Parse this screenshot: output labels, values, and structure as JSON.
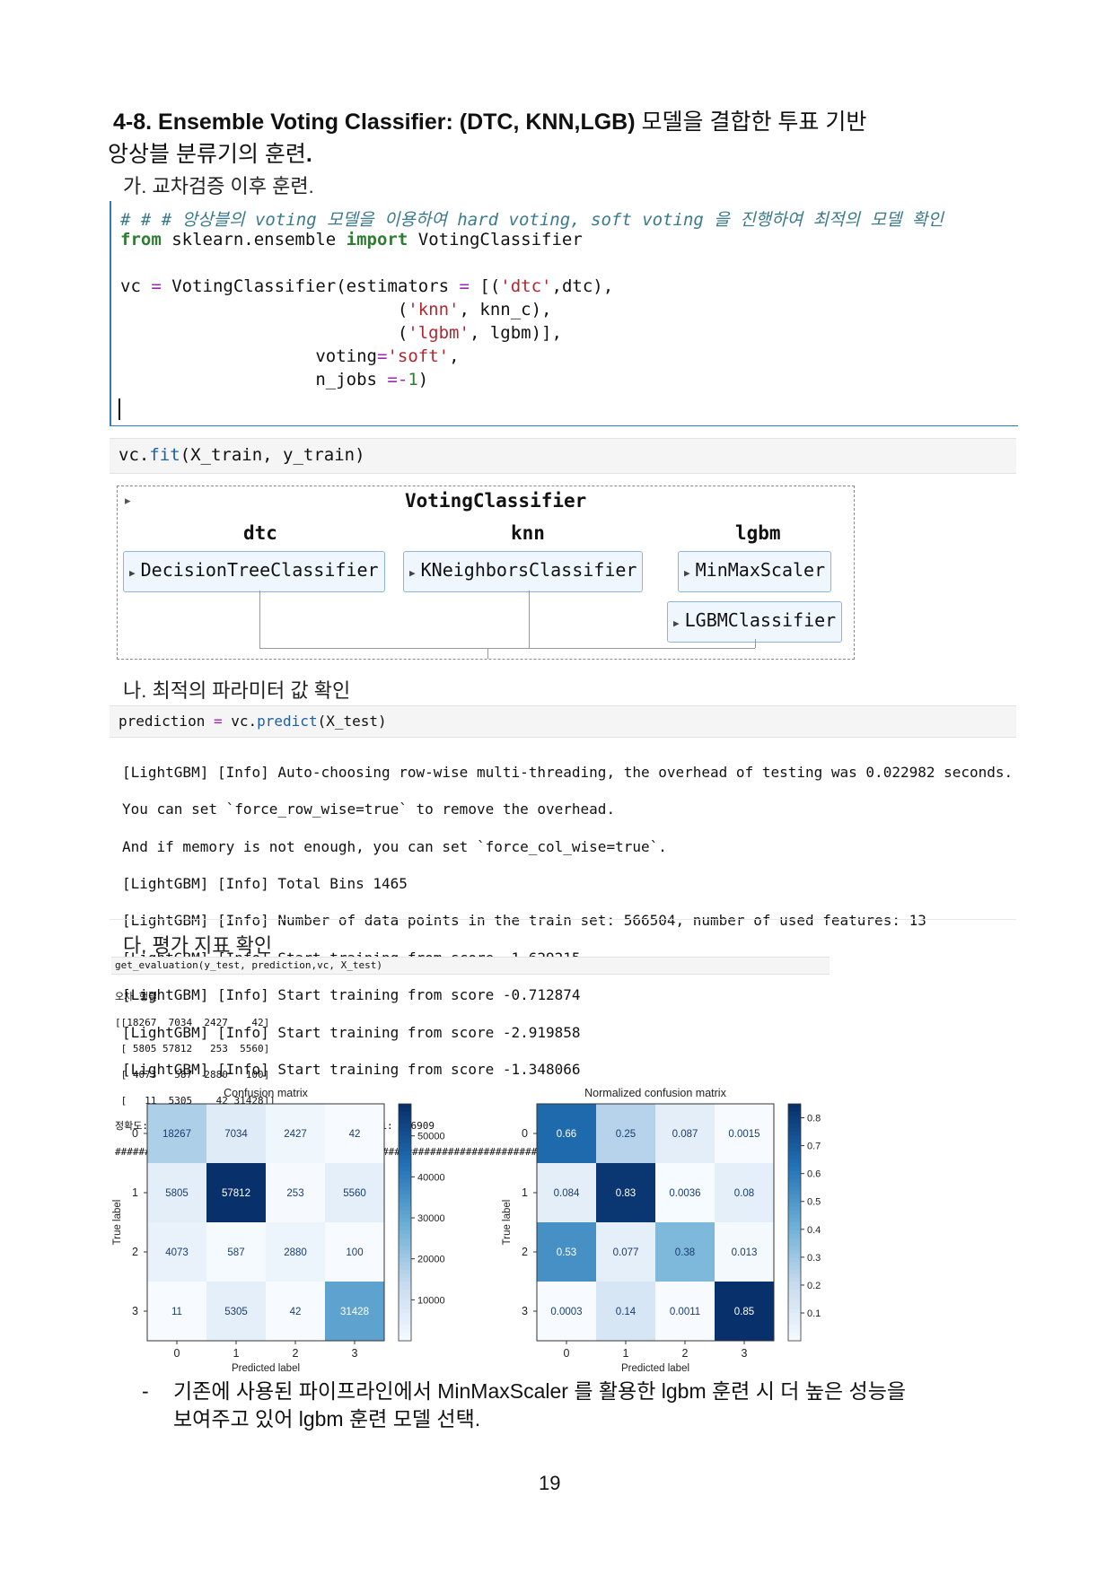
{
  "heading": {
    "bold": "4-8. Ensemble Voting Classifier: (DTC, KNN,LGB)",
    "rest": " 모델을 결합한 투표 기반",
    "line2a": "앙상블 분류기의 훈련",
    "line2b": "."
  },
  "section_ga": "가. 교차검증 이후 훈련.",
  "code_cell": {
    "comment": "# # # 앙상블의 voting 모델을 이용하여 hard voting, soft voting 을 진행하여 최적의 모델 확인",
    "import_from": "from",
    "import_module": " sklearn.ensemble ",
    "import_kw": "import",
    "import_name": " VotingClassifier",
    "l3_a": "vc ",
    "l3_op": "=",
    "l3_b": " VotingClassifier(estimators ",
    "l3_op2": "=",
    "l3_c": " [(",
    "l3_str": "'dtc'",
    "l3_d": ",dtc),",
    "l4_a": "                           (",
    "l4_str": "'knn'",
    "l4_b": ", knn_c),",
    "l5_a": "                           (",
    "l5_str": "'lgbm'",
    "l5_b": ", lgbm)],",
    "l6_a": "                   voting",
    "l6_op": "=",
    "l6_str": "'soft'",
    "l6_b": ",",
    "l7_a": "                   n_jobs ",
    "l7_op": "=-",
    "l7_num": "1",
    "l7_b": ")"
  },
  "fit_cell": {
    "a": "vc.",
    "fn": "fit",
    "b": "(X_train, y_train)"
  },
  "voting_diagram": {
    "title": "VotingClassifier",
    "expand_icon": "▸",
    "columns": [
      {
        "label": "dtc",
        "estimators": [
          "DecisionTreeClassifier"
        ]
      },
      {
        "label": "knn",
        "estimators": [
          "KNeighborsClassifier"
        ]
      },
      {
        "label": "lgbm",
        "estimators": [
          "MinMaxScaler",
          "LGBMClassifier"
        ]
      }
    ]
  },
  "section_na": "나. 최적의 파라미터 값 확인",
  "predict_cell": {
    "a": "prediction ",
    "op": "=",
    "b": " vc.",
    "fn": "predict",
    "c": "(X_test)"
  },
  "lgbm_output": [
    "[LightGBM] [Info] Auto-choosing row-wise multi-threading, the overhead of testing was 0.022982 seconds.",
    "You can set `force_row_wise=true` to remove the overhead.",
    "And if memory is not enough, you can set `force_col_wise=true`.",
    "[LightGBM] [Info] Total Bins 1465",
    "[LightGBM] [Info] Number of data points in the train set: 566504, number of used features: 13",
    "[LightGBM] [Info] Start training from score -1.629215",
    "[LightGBM] [Info] Start training from score -0.712874",
    "[LightGBM] [Info] Start training from score -2.919858",
    "[LightGBM] [Info] Start training from score -1.348066"
  ],
  "section_da": "다. 평가 지표 확인",
  "eval_cell": "get_evaluation(y_test, prediction,vc, X_test)",
  "eval_output": [
    "오차 행렬",
    "[[18267  7034  2427    42]",
    " [ 5805 57812   253  5560]",
    " [ 4073   587  2880   100]",
    " [   11  5305    42 31428]]",
    "정확도: 0.7794, 정밀도: 0.7066, 재현율: 0.6804, F1: 0.6909",
    "############################################################################"
  ],
  "chart_data": [
    {
      "type": "heatmap",
      "title": "Confusion matrix",
      "xlabel": "Predicted label",
      "ylabel": "True label",
      "x_ticks": [
        "0",
        "1",
        "2",
        "3"
      ],
      "y_ticks": [
        "0",
        "1",
        "2",
        "3"
      ],
      "values": [
        [
          18267,
          7034,
          2427,
          42
        ],
        [
          5805,
          57812,
          253,
          5560
        ],
        [
          4073,
          587,
          2880,
          100
        ],
        [
          11,
          5305,
          42,
          31428
        ]
      ],
      "labels": [
        [
          "18267",
          "7034",
          "2427",
          "42"
        ],
        [
          "5805",
          "57812",
          "253",
          "5560"
        ],
        [
          "4073",
          "587",
          "2880",
          "100"
        ],
        [
          "11",
          "5305",
          "42",
          "31428"
        ]
      ],
      "colormap": "Blues",
      "vmin": 11,
      "vmax": 57812,
      "colorbar_ticks": [
        10000,
        20000,
        30000,
        40000,
        50000
      ],
      "colorbar_labels": [
        "10000",
        "20000",
        "30000",
        "40000",
        "50000"
      ]
    },
    {
      "type": "heatmap",
      "title": "Normalized confusion matrix",
      "xlabel": "Predicted label",
      "ylabel": "True label",
      "x_ticks": [
        "0",
        "1",
        "2",
        "3"
      ],
      "y_ticks": [
        "0",
        "1",
        "2",
        "3"
      ],
      "values": [
        [
          0.66,
          0.25,
          0.087,
          0.0015
        ],
        [
          0.084,
          0.83,
          0.0036,
          0.08
        ],
        [
          0.53,
          0.077,
          0.38,
          0.013
        ],
        [
          0.0003,
          0.14,
          0.0011,
          0.85
        ]
      ],
      "labels": [
        [
          "0.66",
          "0.25",
          "0.087",
          "0.0015"
        ],
        [
          "0.084",
          "0.83",
          "0.0036",
          "0.08"
        ],
        [
          "0.53",
          "0.077",
          "0.38",
          "0.013"
        ],
        [
          "0.0003",
          "0.14",
          "0.0011",
          "0.85"
        ]
      ],
      "colormap": "Blues",
      "vmin": 0.0003,
      "vmax": 0.85,
      "colorbar_ticks": [
        0.1,
        0.2,
        0.3,
        0.4,
        0.5,
        0.6,
        0.7,
        0.8
      ],
      "colorbar_labels": [
        "0.1",
        "0.2",
        "0.3",
        "0.4",
        "0.5",
        "0.6",
        "0.7",
        "0.8"
      ]
    }
  ],
  "bullet": {
    "dash": "-",
    "line1": "기존에 사용된 파이프라인에서 MinMaxScaler 를 활용한 lgbm 훈련 시 더 높은 성능을",
    "line2": "보여주고 있어 lgbm 훈련  모델 선택."
  },
  "page_number": "19"
}
